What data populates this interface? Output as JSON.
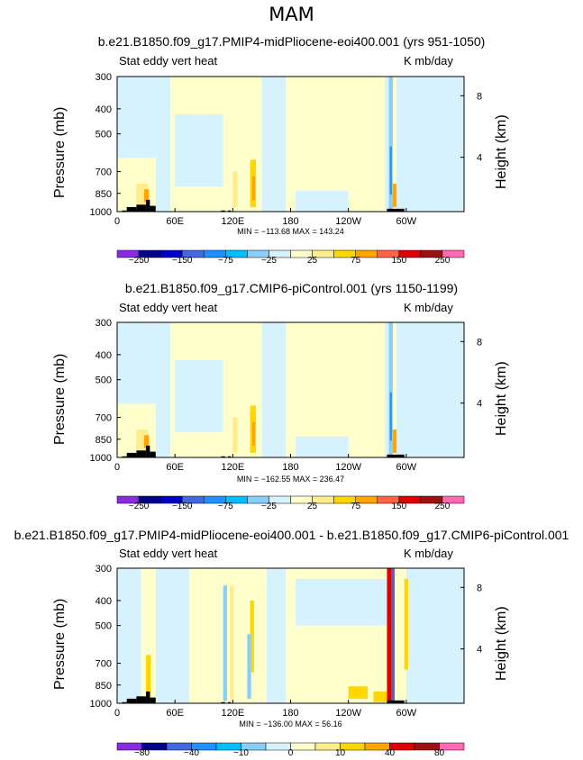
{
  "page": {
    "season": "MAM"
  },
  "panels": [
    {
      "title": "b.e21.B1850.f09_g17.PMIP4-midPliocene-eoi400.001 (yrs 951-1050)",
      "left_label": "Stat eddy vert heat",
      "right_label": "K mb/day",
      "min_max": "MIN = −113.68   MAX = 143.24",
      "colorbar_labels": [
        "−250",
        "−150",
        "−75",
        "−25",
        "25",
        "75",
        "150",
        "250"
      ],
      "kind": "mean"
    },
    {
      "title": "b.e21.B1850.f09_g17.CMIP6-piControl.001 (yrs 1150-1199)",
      "left_label": "Stat eddy vert heat",
      "right_label": "K mb/day",
      "min_max": "MIN = −162.55   MAX = 236.47",
      "colorbar_labels": [
        "−250",
        "−150",
        "−75",
        "−25",
        "25",
        "75",
        "150",
        "250"
      ],
      "kind": "mean"
    },
    {
      "title": "b.e21.B1850.f09_g17.PMIP4-midPliocene-eoi400.001 - b.e21.B1850.f09_g17.CMIP6-piControl.001",
      "left_label": "Stat eddy vert heat",
      "right_label": "K mb/day",
      "min_max": "MIN = −136.00   MAX =  56.16",
      "colorbar_labels": [
        "−80",
        "−40",
        "−10",
        "0",
        "10",
        "40",
        "80"
      ],
      "kind": "diff"
    }
  ],
  "chart_data": {
    "type": "heatmap",
    "title": "MAM",
    "variable": "Stat eddy vert heat",
    "units": "K mb/day",
    "xlabel": "",
    "ylabel": "Pressure (mb)",
    "y2label": "Height (km)",
    "x_ticks": [
      "0",
      "60E",
      "120E",
      "180",
      "120W",
      "60W"
    ],
    "x_tick_values": [
      0,
      60,
      120,
      180,
      240,
      300
    ],
    "xlim": [
      0,
      360
    ],
    "y_ticks": [
      "300",
      "400",
      "500",
      "700",
      "850",
      "1000"
    ],
    "y_tick_values": [
      300,
      400,
      500,
      700,
      850,
      1000
    ],
    "ylim": [
      1000,
      300
    ],
    "y2_ticks": [
      "8",
      "4"
    ],
    "y2_tick_values": [
      8,
      4
    ],
    "colorbar_mean": {
      "levels": [
        -250,
        -200,
        -150,
        -100,
        -75,
        -50,
        -25,
        0,
        25,
        50,
        75,
        100,
        150,
        200,
        250
      ],
      "colors": [
        "#8a2be2",
        "#00008b",
        "#0000cd",
        "#4169e1",
        "#1e90ff",
        "#00bfff",
        "#87cefa",
        "#d6f2ff",
        "#ffffcc",
        "#ffec8b",
        "#ffd700",
        "#ffa500",
        "#ff6347",
        "#e00000",
        "#a01010",
        "#ff69b4"
      ]
    },
    "colorbar_diff": {
      "levels": [
        -80,
        -60,
        -40,
        -20,
        -10,
        -5,
        0,
        5,
        10,
        20,
        40,
        60,
        80
      ],
      "colors": [
        "#8a2be2",
        "#00008b",
        "#4169e1",
        "#1e90ff",
        "#00bfff",
        "#87cefa",
        "#d6f2ff",
        "#ffffcc",
        "#ffec8b",
        "#ffd700",
        "#ffa500",
        "#e00000",
        "#a01010",
        "#ff69b4"
      ]
    },
    "panels": [
      {
        "name": "PMIP4-midPliocene-eoi400 (yrs 951-1050)",
        "min": -113.68,
        "max": 143.24
      },
      {
        "name": "CMIP6-piControl (yrs 1150-1199)",
        "min": -162.55,
        "max": 236.47
      },
      {
        "name": "midPliocene - piControl",
        "min": -136.0,
        "max": 56.16
      }
    ]
  }
}
